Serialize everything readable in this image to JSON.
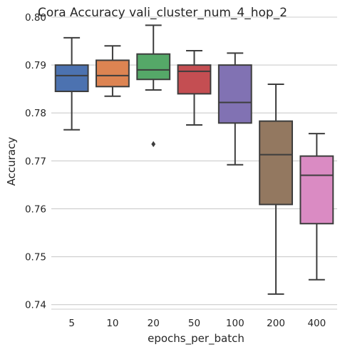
{
  "chart_data": {
    "type": "box",
    "title": "Cora Accuracy vali_cluster_num_4_hop_2",
    "xlabel": "epochs_per_batch",
    "ylabel": "Accuracy",
    "ylim": [
      0.7395,
      0.8
    ],
    "yticks": [
      0.74,
      0.75,
      0.76,
      0.77,
      0.78,
      0.79,
      0.8
    ],
    "ytick_labels": [
      "0.74",
      "0.75",
      "0.76",
      "0.77",
      "0.78",
      "0.79",
      "0.80"
    ],
    "grid": "horizontal",
    "categories": [
      "5",
      "10",
      "20",
      "50",
      "100",
      "200",
      "400"
    ],
    "boxes": [
      {
        "category": "5",
        "whislo": 0.7765,
        "q1": 0.7845,
        "med": 0.7878,
        "q3": 0.79,
        "whishi": 0.7957,
        "fliers": [],
        "color": "#4c72b0"
      },
      {
        "category": "10",
        "whislo": 0.7835,
        "q1": 0.7855,
        "med": 0.7878,
        "q3": 0.791,
        "whishi": 0.794,
        "fliers": [],
        "color": "#dd8452"
      },
      {
        "category": "20",
        "whislo": 0.7848,
        "q1": 0.787,
        "med": 0.789,
        "q3": 0.7923,
        "whishi": 0.7983,
        "fliers": [
          0.7735
        ],
        "color": "#55a868"
      },
      {
        "category": "50",
        "whislo": 0.7775,
        "q1": 0.784,
        "med": 0.7887,
        "q3": 0.79,
        "whishi": 0.793,
        "fliers": [],
        "color": "#c44e52"
      },
      {
        "category": "100",
        "whislo": 0.7692,
        "q1": 0.7779,
        "med": 0.7822,
        "q3": 0.79,
        "whishi": 0.7925,
        "fliers": [],
        "color": "#8172b3"
      },
      {
        "category": "200",
        "whislo": 0.7422,
        "q1": 0.7609,
        "med": 0.7713,
        "q3": 0.7783,
        "whishi": 0.786,
        "fliers": [],
        "color": "#937860"
      },
      {
        "category": "400",
        "whislo": 0.7452,
        "q1": 0.7569,
        "med": 0.767,
        "q3": 0.771,
        "whishi": 0.7757,
        "fliers": [],
        "color": "#da8bc3"
      }
    ]
  }
}
